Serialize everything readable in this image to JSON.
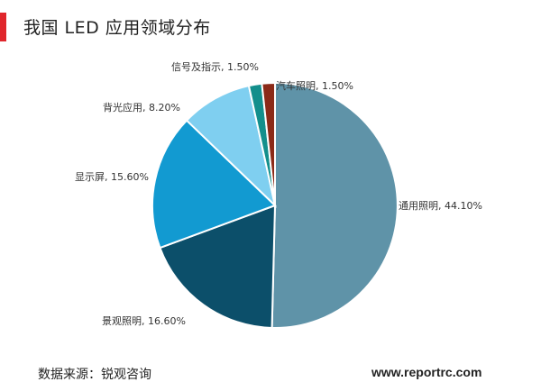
{
  "title": "我国 LED 应用领域分布",
  "accent_color": "#e0262c",
  "source": "数据来源：锐观咨询",
  "website": "www.reportrc.com",
  "chart_data": {
    "type": "pie",
    "title": "我国 LED 应用领域分布",
    "slices": [
      {
        "name": "通用照明",
        "value": 44.1,
        "label": "通用照明, 44.10%",
        "color": "#5f93a8"
      },
      {
        "name": "景观照明",
        "value": 16.6,
        "label": "景观照明, 16.60%",
        "color": "#0c4f6a"
      },
      {
        "name": "显示屏",
        "value": 15.6,
        "label": "显示屏, 15.60%",
        "color": "#129ad1"
      },
      {
        "name": "背光应用",
        "value": 8.2,
        "label": "背光应用, 8.20%",
        "color": "#7fcff0"
      },
      {
        "name": "信号及指示",
        "value": 1.5,
        "label": "信号及指示, 1.50%",
        "color": "#138f8c"
      },
      {
        "name": "汽车照明",
        "value": 1.5,
        "label": "汽车照明, 1.50%",
        "color": "#8b2a18"
      }
    ]
  }
}
